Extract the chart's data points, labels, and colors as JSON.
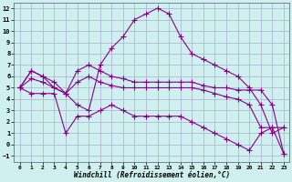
{
  "xlabel": "Windchill (Refroidissement éolien,°C)",
  "xlim": [
    -0.5,
    23.5
  ],
  "ylim": [
    -1.5,
    12.5
  ],
  "xticks": [
    0,
    1,
    2,
    3,
    4,
    5,
    6,
    7,
    8,
    9,
    10,
    11,
    12,
    13,
    14,
    15,
    16,
    17,
    18,
    19,
    20,
    21,
    22,
    23
  ],
  "yticks": [
    -1,
    0,
    1,
    2,
    3,
    4,
    5,
    6,
    7,
    8,
    9,
    10,
    11,
    12
  ],
  "background_color": "#d0f0f0",
  "grid_color": "#a0a0c8",
  "line_color": "#880088",
  "line_width": 0.8,
  "marker": "+",
  "marker_size": 4,
  "marker_lw": 0.8,
  "series": [
    {
      "x": [
        0,
        1,
        2,
        3,
        4,
        5,
        6,
        7,
        8,
        9,
        10,
        11,
        12,
        13,
        14,
        15,
        16,
        17,
        18,
        19,
        20,
        21,
        22,
        23
      ],
      "y": [
        5.0,
        6.5,
        6.0,
        5.0,
        4.5,
        3.5,
        3.0,
        7.0,
        8.5,
        9.5,
        11.0,
        11.5,
        12.0,
        11.5,
        9.5,
        8.0,
        7.5,
        7.0,
        6.5,
        6.0,
        5.0,
        3.5,
        1.0,
        1.5
      ]
    },
    {
      "x": [
        0,
        1,
        2,
        3,
        4,
        5,
        6,
        7,
        8,
        9,
        10,
        11,
        12,
        13,
        14,
        15,
        16,
        17,
        18,
        19,
        20,
        21,
        22,
        23
      ],
      "y": [
        5.0,
        6.5,
        6.0,
        5.5,
        4.5,
        6.5,
        7.0,
        6.5,
        6.0,
        5.8,
        5.5,
        5.5,
        5.5,
        5.5,
        5.5,
        5.5,
        5.2,
        5.0,
        5.0,
        4.8,
        4.8,
        4.8,
        3.5,
        -0.8
      ]
    },
    {
      "x": [
        0,
        1,
        2,
        3,
        4,
        5,
        6,
        7,
        8,
        9,
        10,
        11,
        12,
        13,
        14,
        15,
        16,
        17,
        18,
        19,
        20,
        21,
        22,
        23
      ],
      "y": [
        5.0,
        5.8,
        5.5,
        5.0,
        4.5,
        5.5,
        6.0,
        5.5,
        5.2,
        5.0,
        5.0,
        5.0,
        5.0,
        5.0,
        5.0,
        5.0,
        4.8,
        4.5,
        4.2,
        4.0,
        3.5,
        1.5,
        1.5,
        1.5
      ]
    },
    {
      "x": [
        0,
        1,
        2,
        3,
        4,
        5,
        6,
        7,
        8,
        9,
        10,
        11,
        12,
        13,
        14,
        15,
        16,
        17,
        18,
        19,
        20,
        21,
        22,
        23
      ],
      "y": [
        5.0,
        4.5,
        4.5,
        4.5,
        1.0,
        2.5,
        2.5,
        3.0,
        3.5,
        3.0,
        2.5,
        2.5,
        2.5,
        2.5,
        2.5,
        2.0,
        1.5,
        1.0,
        0.5,
        0.0,
        -0.5,
        1.0,
        1.5,
        -0.8
      ]
    }
  ]
}
